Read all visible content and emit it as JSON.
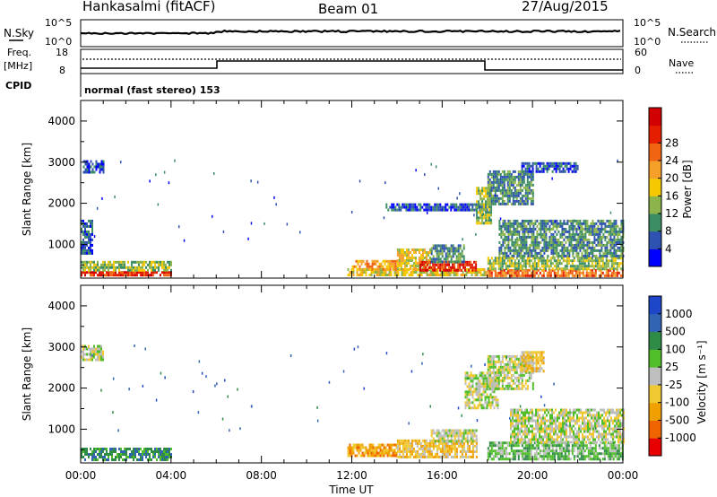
{
  "header": {
    "station": "Hankasalmi (fitACF)",
    "beam": "Beam 01",
    "date": "27/Aug/2015"
  },
  "strip_labels": {
    "nsky": "N.Sky",
    "nsearch": "N.Search",
    "freq": "Freq.",
    "mhz": "[MHz]",
    "nave": "Nave",
    "cpid": "CPID",
    "mode": "normal (fast stereo) 153",
    "noise_ticks_left": [
      "10^5",
      "10^0"
    ],
    "noise_ticks_right": [
      "10^5",
      "10^0"
    ],
    "freq_ticks": [
      "18",
      "8"
    ],
    "nave_ticks": [
      "60",
      "0"
    ]
  },
  "axes": {
    "ylabel": "Slant Range [km]",
    "xlabel": "Time UT",
    "yticks": [
      "1000",
      "2000",
      "3000",
      "4000"
    ],
    "xticks": [
      "00:00",
      "04:00",
      "08:00",
      "12:00",
      "16:00",
      "20:00",
      "00:00"
    ]
  },
  "colors": {
    "power_scale": [
      "#0000ff",
      "#2e52b0",
      "#3c8c64",
      "#8cb44b",
      "#f5c800",
      "#f5a028",
      "#f06414",
      "#e61e00",
      "#d20000"
    ],
    "velocity_scale": [
      "#1e46c8",
      "#3264b4",
      "#2e8c46",
      "#50be28",
      "#bebebe",
      "#f0c832",
      "#f0a000",
      "#f06400",
      "#e60000"
    ]
  },
  "chart_data": [
    {
      "type": "heatmap",
      "panel": "power",
      "colorbar_label": "Power [dB]",
      "colorbar_ticks": [
        "4",
        "8",
        "12",
        "16",
        "20",
        "24",
        "28"
      ],
      "x_range_hours": [
        0,
        24
      ],
      "ylim_km": [
        180,
        4500
      ],
      "regions": [
        {
          "t0": 0.0,
          "t1": 4.0,
          "r0": 250,
          "r1": 350,
          "level": 7
        },
        {
          "t0": 0.0,
          "t1": 4.0,
          "r0": 350,
          "r1": 600,
          "level": 3
        },
        {
          "t0": 0.0,
          "t1": 0.5,
          "r0": 800,
          "r1": 1600,
          "level": 1
        },
        {
          "t0": 0.1,
          "t1": 1.0,
          "r0": 2750,
          "r1": 3050,
          "level": 1
        },
        {
          "t0": 11.8,
          "t1": 18.0,
          "r0": 250,
          "r1": 420,
          "level": 4
        },
        {
          "t0": 12.0,
          "t1": 14.0,
          "r0": 400,
          "r1": 620,
          "level": 5
        },
        {
          "t0": 14.0,
          "t1": 15.5,
          "r0": 400,
          "r1": 900,
          "level": 4
        },
        {
          "t0": 15.0,
          "t1": 17.5,
          "r0": 350,
          "r1": 600,
          "level": 7
        },
        {
          "t0": 15.5,
          "t1": 17.0,
          "r0": 600,
          "r1": 1000,
          "level": 2
        },
        {
          "t0": 13.5,
          "t1": 18.0,
          "r0": 1850,
          "r1": 2000,
          "level": 1
        },
        {
          "t0": 17.5,
          "t1": 18.2,
          "r0": 1500,
          "r1": 2400,
          "level": 3
        },
        {
          "t0": 18.0,
          "t1": 20.0,
          "r0": 2000,
          "r1": 2800,
          "level": 2
        },
        {
          "t0": 19.5,
          "t1": 22.0,
          "r0": 2800,
          "r1": 3000,
          "level": 1
        },
        {
          "t0": 18.0,
          "t1": 24.0,
          "r0": 250,
          "r1": 400,
          "level": 6
        },
        {
          "t0": 18.0,
          "t1": 24.0,
          "r0": 400,
          "r1": 700,
          "level": 3
        },
        {
          "t0": 18.5,
          "t1": 24.0,
          "r0": 700,
          "r1": 1600,
          "level": 2
        }
      ]
    },
    {
      "type": "heatmap",
      "panel": "velocity",
      "colorbar_label": "Velocity [m s⁻¹]",
      "colorbar_ticks": [
        "1000",
        "500",
        "100",
        "25",
        "-25",
        "-100",
        "-500",
        "-1000"
      ],
      "x_range_hours": [
        0,
        24
      ],
      "ylim_km": [
        180,
        4500
      ],
      "regions": [
        {
          "t0": 0.0,
          "t1": 4.0,
          "r0": 250,
          "r1": 550,
          "level": 2
        },
        {
          "t0": 0.0,
          "t1": 1.0,
          "r0": 2700,
          "r1": 3050,
          "level": 4
        },
        {
          "t0": 11.8,
          "t1": 14.0,
          "r0": 350,
          "r1": 650,
          "level": 6
        },
        {
          "t0": 14.0,
          "t1": 17.5,
          "r0": 300,
          "r1": 750,
          "level": 5
        },
        {
          "t0": 15.5,
          "t1": 17.5,
          "r0": 700,
          "r1": 1000,
          "level": 4
        },
        {
          "t0": 17.0,
          "t1": 18.5,
          "r0": 1500,
          "r1": 2400,
          "level": 4
        },
        {
          "t0": 18.0,
          "t1": 20.0,
          "r0": 2000,
          "r1": 2800,
          "level": 4
        },
        {
          "t0": 19.5,
          "t1": 20.5,
          "r0": 2400,
          "r1": 2900,
          "level": 5
        },
        {
          "t0": 18.0,
          "t1": 24.0,
          "r0": 250,
          "r1": 700,
          "level": 3
        },
        {
          "t0": 19.0,
          "t1": 24.0,
          "r0": 700,
          "r1": 1500,
          "level": 4
        }
      ]
    }
  ]
}
